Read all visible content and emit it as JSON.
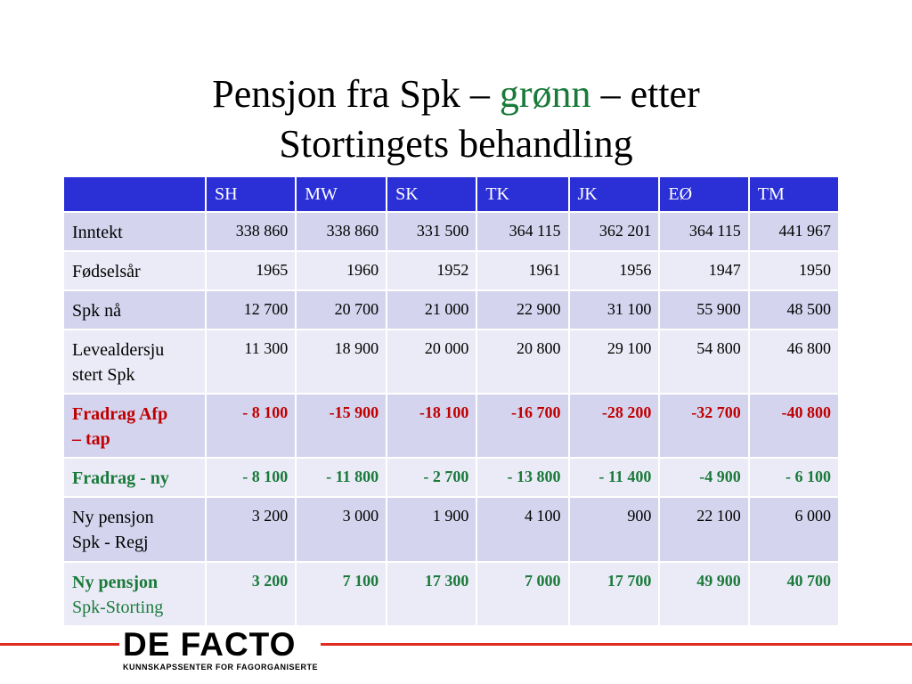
{
  "title": {
    "part1": "Pensjon fra Spk – ",
    "highlight": "grønn",
    "part2": " – etter",
    "line2": "Stortingets behandling",
    "highlight_color": "#1a7a3a"
  },
  "table": {
    "header_color": "#2b2fd6",
    "columns": [
      "SH",
      "MW",
      "SK",
      "TK",
      "JK",
      "EØ",
      "TM"
    ],
    "rows": [
      {
        "label": "Inntekt",
        "label2": "",
        "values": [
          "338 860",
          "338 860",
          "331 500",
          "364 115",
          "362 201",
          "364 115",
          "441 967"
        ]
      },
      {
        "label": "Fødselsår",
        "label2": "",
        "values": [
          "1965",
          "1960",
          "1952",
          "1961",
          "1956",
          "1947",
          "1950"
        ]
      },
      {
        "label": "Spk nå",
        "label2": "",
        "values": [
          "12 700",
          "20 700",
          "21 000",
          "22 900",
          "31 100",
          "55 900",
          "48 500"
        ]
      },
      {
        "label": "Levealdersju",
        "label2": "stert Spk",
        "values": [
          "11 300",
          "18 900",
          "20 000",
          "20 800",
          "29 100",
          "54 800",
          "46 800"
        ]
      },
      {
        "label": "Fradrag Afp",
        "label2": "– tap",
        "values": [
          "- 8 100",
          "-15 900",
          "-18 100",
          "-16 700",
          "-28 200",
          "-32 700",
          "-40 800"
        ]
      },
      {
        "label": "Fradrag - ny",
        "label2": "",
        "values": [
          "- 8 100",
          "- 11 800",
          "- 2 700",
          "- 13 800",
          "- 11 400",
          "-4 900",
          "- 6 100"
        ]
      },
      {
        "label": "Ny pensjon",
        "label2": "Spk - Regj",
        "values": [
          "3 200",
          "3 000",
          "1 900",
          "4 100",
          "900",
          "22 100",
          "6 000"
        ]
      },
      {
        "label": "Ny pensjon",
        "label2": "Spk-Storting",
        "values": [
          "3 200",
          "7 100",
          "17 300",
          "7 000",
          "17 700",
          "49 900",
          "40 700"
        ]
      }
    ]
  },
  "footer": {
    "logo_main": "DE FACTO",
    "logo_sub": "KUNNSKAPSSENTER FOR FAGORGANISERTE",
    "line_color": "#e02b20"
  }
}
